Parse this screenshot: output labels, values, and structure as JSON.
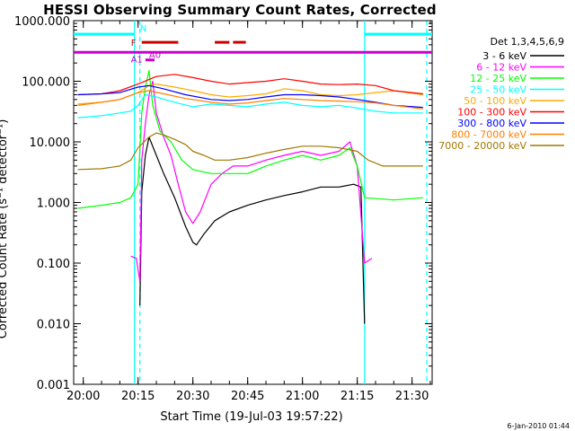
{
  "chart_data": {
    "type": "line",
    "title": "HESSI Observing Summary Count Rates, Corrected",
    "xlabel": "Start Time (19-Jul-03 19:57:22)",
    "ylabel": "Corrected Count Rate (s⁻¹ detector⁻¹)",
    "y_scale": "log",
    "ylim": [
      0.001,
      1000
    ],
    "xlim": [
      "19:57:22",
      "21:35:30"
    ],
    "x_ticks": [
      "20:00",
      "20:15",
      "20:30",
      "20:45",
      "21:00",
      "21:15",
      "21:30"
    ],
    "y_ticks": [
      "1000.000",
      "100.000",
      "10.000",
      "1.000",
      "0.100",
      "0.010",
      "0.001"
    ],
    "grid": false,
    "legend_title": "Det 1,3,4,5,6,9",
    "legend_position": "right",
    "series": [
      {
        "name": "3 - 6 keV",
        "color": "#000000",
        "points": [
          [
            "20:15:30",
            0.02
          ],
          [
            "20:16:00",
            1.5
          ],
          [
            "20:17:00",
            6
          ],
          [
            "20:18:00",
            12
          ],
          [
            "20:20:00",
            6
          ],
          [
            "20:22:00",
            3
          ],
          [
            "20:25:00",
            1.2
          ],
          [
            "20:28:00",
            0.4
          ],
          [
            "20:30:00",
            0.22
          ],
          [
            "20:31:00",
            0.2
          ],
          [
            "20:33:00",
            0.3
          ],
          [
            "20:36:00",
            0.5
          ],
          [
            "20:40:00",
            0.7
          ],
          [
            "20:45:00",
            0.9
          ],
          [
            "20:50:00",
            1.1
          ],
          [
            "20:55:00",
            1.3
          ],
          [
            "21:00:00",
            1.5
          ],
          [
            "21:05:00",
            1.8
          ],
          [
            "21:10:00",
            1.8
          ],
          [
            "21:14:00",
            2
          ],
          [
            "21:16:00",
            1.8
          ],
          [
            "21:17:00",
            0.01
          ]
        ]
      },
      {
        "name": "6 - 12 keV",
        "color": "#ff00ff",
        "points": [
          [
            "20:13:00",
            0.13
          ],
          [
            "20:14:30",
            0.12
          ],
          [
            "20:15:30",
            0.05
          ],
          [
            "20:16:00",
            5
          ],
          [
            "20:17:00",
            20
          ],
          [
            "20:18:00",
            60
          ],
          [
            "20:19:00",
            100
          ],
          [
            "20:20:00",
            30
          ],
          [
            "20:22:00",
            12
          ],
          [
            "20:24:00",
            6
          ],
          [
            "20:26:00",
            2
          ],
          [
            "20:28:00",
            0.7
          ],
          [
            "20:30:00",
            0.45
          ],
          [
            "20:32:00",
            0.7
          ],
          [
            "20:35:00",
            2
          ],
          [
            "20:38:00",
            3
          ],
          [
            "20:41:00",
            4
          ],
          [
            "20:45:00",
            4
          ],
          [
            "20:50:00",
            5
          ],
          [
            "20:55:00",
            6
          ],
          [
            "21:00:00",
            7
          ],
          [
            "21:05:00",
            6
          ],
          [
            "21:10:00",
            7
          ],
          [
            "21:13:00",
            10
          ],
          [
            "21:15:00",
            4
          ],
          [
            "21:17:00",
            0.1
          ],
          [
            "21:19:00",
            0.12
          ]
        ]
      },
      {
        "name": "12 - 25 keV",
        "color": "#00ff00",
        "points": [
          [
            "19:58:30",
            0.8
          ],
          [
            "20:05:00",
            0.9
          ],
          [
            "20:10:00",
            1
          ],
          [
            "20:13:00",
            1.2
          ],
          [
            "20:15:00",
            2
          ],
          [
            "20:16:00",
            30
          ],
          [
            "20:17:00",
            80
          ],
          [
            "20:18:00",
            150
          ],
          [
            "20:19:00",
            40
          ],
          [
            "20:21:00",
            15
          ],
          [
            "20:24:00",
            10
          ],
          [
            "20:27:00",
            5
          ],
          [
            "20:30:00",
            3.5
          ],
          [
            "20:35:00",
            3
          ],
          [
            "20:40:00",
            3
          ],
          [
            "20:45:00",
            3
          ],
          [
            "20:50:00",
            4
          ],
          [
            "20:55:00",
            5
          ],
          [
            "21:00:00",
            6
          ],
          [
            "21:05:00",
            5
          ],
          [
            "21:10:00",
            6
          ],
          [
            "21:13:00",
            8
          ],
          [
            "21:15:00",
            4
          ],
          [
            "21:17:00",
            1.2
          ],
          [
            "21:25:00",
            1.1
          ],
          [
            "21:33:00",
            1.2
          ]
        ]
      },
      {
        "name": "25 - 50 keV",
        "color": "#00ffff",
        "points": [
          [
            "19:58:30",
            25
          ],
          [
            "20:05:00",
            27
          ],
          [
            "20:10:00",
            30
          ],
          [
            "20:13:00",
            32
          ],
          [
            "20:15:00",
            40
          ],
          [
            "20:17:00",
            60
          ],
          [
            "20:20:00",
            55
          ],
          [
            "20:25:00",
            45
          ],
          [
            "20:30:00",
            38
          ],
          [
            "20:35:00",
            42
          ],
          [
            "20:40:00",
            40
          ],
          [
            "20:45:00",
            38
          ],
          [
            "20:50:00",
            42
          ],
          [
            "20:55:00",
            45
          ],
          [
            "21:00:00",
            40
          ],
          [
            "21:05:00",
            38
          ],
          [
            "21:10:00",
            40
          ],
          [
            "21:15:00",
            36
          ],
          [
            "21:20:00",
            32
          ],
          [
            "21:25:00",
            30
          ],
          [
            "21:33:00",
            30
          ]
        ]
      },
      {
        "name": "50 - 100 keV",
        "color": "#ffaa00",
        "points": [
          [
            "19:58:30",
            42
          ],
          [
            "20:05:00",
            45
          ],
          [
            "20:10:00",
            50
          ],
          [
            "20:15:00",
            65
          ],
          [
            "20:18:00",
            85
          ],
          [
            "20:20:00",
            90
          ],
          [
            "20:25:00",
            80
          ],
          [
            "20:30:00",
            70
          ],
          [
            "20:35:00",
            60
          ],
          [
            "20:40:00",
            55
          ],
          [
            "20:45:00",
            58
          ],
          [
            "20:50:00",
            62
          ],
          [
            "20:55:00",
            75
          ],
          [
            "21:00:00",
            70
          ],
          [
            "21:05:00",
            60
          ],
          [
            "21:10:00",
            58
          ],
          [
            "21:15:00",
            60
          ],
          [
            "21:20:00",
            65
          ],
          [
            "21:25:00",
            70
          ],
          [
            "21:33:00",
            60
          ]
        ]
      },
      {
        "name": "100 - 300 keV",
        "color": "#ff0000",
        "points": [
          [
            "19:58:30",
            60
          ],
          [
            "20:05:00",
            62
          ],
          [
            "20:10:00",
            70
          ],
          [
            "20:15:00",
            90
          ],
          [
            "20:20:00",
            120
          ],
          [
            "20:25:00",
            130
          ],
          [
            "20:30:00",
            115
          ],
          [
            "20:35:00",
            100
          ],
          [
            "20:40:00",
            90
          ],
          [
            "20:45:00",
            95
          ],
          [
            "20:50:00",
            100
          ],
          [
            "20:55:00",
            110
          ],
          [
            "21:00:00",
            100
          ],
          [
            "21:05:00",
            90
          ],
          [
            "21:10:00",
            88
          ],
          [
            "21:15:00",
            90
          ],
          [
            "21:20:00",
            85
          ],
          [
            "21:25:00",
            70
          ],
          [
            "21:33:00",
            62
          ]
        ]
      },
      {
        "name": "300 - 800 keV",
        "color": "#0000ff",
        "points": [
          [
            "19:58:30",
            60
          ],
          [
            "20:05:00",
            62
          ],
          [
            "20:10:00",
            65
          ],
          [
            "20:15:00",
            80
          ],
          [
            "20:18:00",
            85
          ],
          [
            "20:22:00",
            75
          ],
          [
            "20:28:00",
            60
          ],
          [
            "20:35:00",
            50
          ],
          [
            "20:40:00",
            48
          ],
          [
            "20:45:00",
            50
          ],
          [
            "20:50:00",
            55
          ],
          [
            "20:55:00",
            60
          ],
          [
            "21:00:00",
            60
          ],
          [
            "21:05:00",
            58
          ],
          [
            "21:10:00",
            55
          ],
          [
            "21:15:00",
            50
          ],
          [
            "21:20:00",
            45
          ],
          [
            "21:25:00",
            40
          ],
          [
            "21:33:00",
            37
          ]
        ]
      },
      {
        "name": "800 - 7000 keV",
        "color": "#ff7f00",
        "points": [
          [
            "19:58:30",
            40
          ],
          [
            "20:05:00",
            45
          ],
          [
            "20:10:00",
            50
          ],
          [
            "20:15:00",
            65
          ],
          [
            "20:18:00",
            70
          ],
          [
            "20:22:00",
            62
          ],
          [
            "20:28:00",
            52
          ],
          [
            "20:35:00",
            45
          ],
          [
            "20:40:00",
            42
          ],
          [
            "20:45:00",
            44
          ],
          [
            "20:50:00",
            48
          ],
          [
            "20:55:00",
            52
          ],
          [
            "21:00:00",
            50
          ],
          [
            "21:05:00",
            48
          ],
          [
            "21:10:00",
            47
          ],
          [
            "21:15:00",
            46
          ],
          [
            "21:20:00",
            44
          ],
          [
            "21:25:00",
            40
          ],
          [
            "21:33:00",
            35
          ]
        ]
      },
      {
        "name": "7000 - 20000 keV",
        "color": "#a07800",
        "points": [
          [
            "19:58:30",
            3.5
          ],
          [
            "20:05:00",
            3.6
          ],
          [
            "20:10:00",
            4
          ],
          [
            "20:13:00",
            5
          ],
          [
            "20:15:00",
            8
          ],
          [
            "20:18:00",
            12
          ],
          [
            "20:20:00",
            14
          ],
          [
            "20:22:00",
            13
          ],
          [
            "20:25:00",
            11
          ],
          [
            "20:28:00",
            9
          ],
          [
            "20:30:00",
            7
          ],
          [
            "20:33:00",
            6
          ],
          [
            "20:36:00",
            5
          ],
          [
            "20:40:00",
            5
          ],
          [
            "20:45:00",
            5.5
          ],
          [
            "20:50:00",
            6.5
          ],
          [
            "20:55:00",
            7.5
          ],
          [
            "21:00:00",
            8.5
          ],
          [
            "21:05:00",
            8.5
          ],
          [
            "21:10:00",
            8
          ],
          [
            "21:15:00",
            7
          ],
          [
            "21:18:00",
            5
          ],
          [
            "21:22:00",
            4
          ],
          [
            "21:28:00",
            4
          ],
          [
            "21:33:00",
            4
          ]
        ]
      }
    ],
    "flags": [
      {
        "label": "N",
        "color": "#00ffff",
        "level": 600,
        "segments": [
          [
            "19:57:22",
            "20:14:00"
          ],
          [
            "21:17:00",
            "21:35:30"
          ]
        ]
      },
      {
        "label": "F",
        "color": "#cc0000",
        "level": 440,
        "segments": [
          [
            "20:16:00",
            "20:26:00"
          ],
          [
            "20:36:00",
            "20:40:00"
          ],
          [
            "20:41:00",
            "20:44:30"
          ]
        ]
      },
      {
        "label": "A1",
        "color": "#cc00cc",
        "level": 300,
        "segments": [
          [
            "19:57:22",
            "21:35:30"
          ]
        ]
      },
      {
        "label": "A0",
        "color": "#cc00cc",
        "level": 225,
        "segments": [
          [
            "20:17:00",
            "20:19:30"
          ]
        ]
      }
    ],
    "markers": [
      {
        "time": "20:14:00",
        "style": "solid",
        "color": "#00ffff"
      },
      {
        "time": "20:15:30",
        "style": "dashed",
        "color": "#00ffff"
      },
      {
        "time": "21:17:00",
        "style": "solid",
        "color": "#00ffff"
      },
      {
        "time": "21:34:00",
        "style": "dashed",
        "color": "#00ffff"
      }
    ]
  },
  "footer": {
    "date": "6-Jan-2010 01:44"
  }
}
